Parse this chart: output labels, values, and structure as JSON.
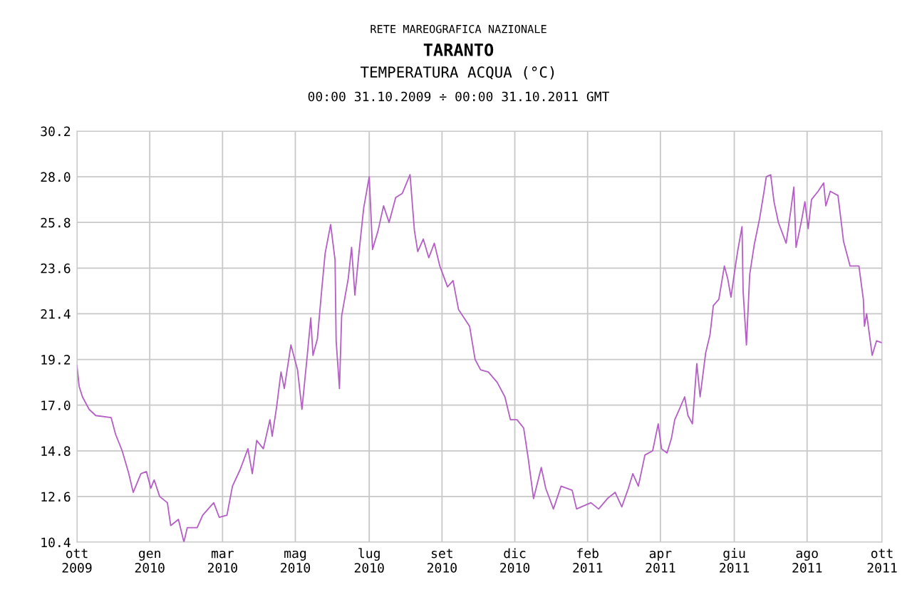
{
  "chart_data": {
    "type": "line",
    "title": "TARANTO",
    "subtitle": "TEMPERATURA ACQUA (°C)",
    "annotations": [
      "RETE MAREOGRAFICA NAZIONALE",
      "00:00 31.10.2009 ÷ 00:00 31.10.2011 GMT"
    ],
    "x": [
      "2009-10-31",
      "2009-11-02",
      "2009-11-05",
      "2009-11-11",
      "2009-11-17",
      "2009-12-01",
      "2009-12-05",
      "2009-12-11",
      "2009-12-17",
      "2009-12-21",
      "2009-12-28",
      "2010-01-02",
      "2010-01-06",
      "2010-01-09",
      "2010-01-14",
      "2010-01-21",
      "2010-01-24",
      "2010-01-31",
      "2010-02-05",
      "2010-02-08",
      "2010-02-17",
      "2010-02-22",
      "2010-03-04",
      "2010-03-09",
      "2010-03-16",
      "2010-03-21",
      "2010-03-28",
      "2010-04-04",
      "2010-04-08",
      "2010-04-12",
      "2010-04-18",
      "2010-04-24",
      "2010-04-26",
      "2010-04-30",
      "2010-05-04",
      "2010-05-07",
      "2010-05-13",
      "2010-05-19",
      "2010-05-23",
      "2010-05-28",
      "2010-05-31",
      "2010-06-02",
      "2010-06-06",
      "2010-06-10",
      "2010-06-13",
      "2010-06-18",
      "2010-06-22",
      "2010-06-23",
      "2010-06-26",
      "2010-06-28",
      "2010-07-04",
      "2010-07-07",
      "2010-07-10",
      "2010-07-14",
      "2010-07-18",
      "2010-07-23",
      "2010-07-26",
      "2010-07-31",
      "2010-08-05",
      "2010-08-10",
      "2010-08-16",
      "2010-08-22",
      "2010-08-29",
      "2010-09-02",
      "2010-09-05",
      "2010-09-10",
      "2010-09-15",
      "2010-09-20",
      "2010-09-25",
      "2010-10-02",
      "2010-10-07",
      "2010-10-12",
      "2010-10-22",
      "2010-10-27",
      "2010-11-01",
      "2010-11-08",
      "2010-11-16",
      "2010-11-23",
      "2010-11-28",
      "2010-12-04",
      "2010-12-10",
      "2010-12-14",
      "2010-12-19",
      "2010-12-26",
      "2010-12-30",
      "2011-01-06",
      "2011-01-13",
      "2011-01-23",
      "2011-01-27",
      "2011-02-09",
      "2011-02-16",
      "2011-02-24",
      "2011-03-03",
      "2011-03-09",
      "2011-03-15",
      "2011-03-19",
      "2011-03-24",
      "2011-03-30",
      "2011-04-06",
      "2011-04-11",
      "2011-04-14",
      "2011-04-19",
      "2011-04-23",
      "2011-04-26",
      "2011-05-01",
      "2011-05-05",
      "2011-05-08",
      "2011-05-12",
      "2011-05-16",
      "2011-05-19",
      "2011-05-24",
      "2011-05-28",
      "2011-05-31",
      "2011-06-05",
      "2011-06-10",
      "2011-06-13",
      "2011-06-16",
      "2011-06-20",
      "2011-06-22",
      "2011-06-26",
      "2011-06-27",
      "2011-06-30",
      "2011-07-03",
      "2011-07-07",
      "2011-07-12",
      "2011-07-16",
      "2011-07-18",
      "2011-07-22",
      "2011-07-25",
      "2011-07-29",
      "2011-08-05",
      "2011-08-09",
      "2011-08-12",
      "2011-08-14",
      "2011-08-19",
      "2011-08-22",
      "2011-08-25",
      "2011-08-28",
      "2011-09-03",
      "2011-09-08",
      "2011-09-10",
      "2011-09-14",
      "2011-09-21",
      "2011-09-24",
      "2011-09-26",
      "2011-10-02",
      "2011-10-10",
      "2011-10-14",
      "2011-10-15",
      "2011-10-17",
      "2011-10-22",
      "2011-10-26",
      "2011-10-31"
    ],
    "series": [
      {
        "color": "#b45ec6",
        "values": [
          18.9,
          17.9,
          17.4,
          16.8,
          16.5,
          16.4,
          15.6,
          14.8,
          13.7,
          12.8,
          13.7,
          13.8,
          13.0,
          13.4,
          12.6,
          12.3,
          11.2,
          11.5,
          10.4,
          11.1,
          11.1,
          11.7,
          12.3,
          11.6,
          11.7,
          13.1,
          13.9,
          14.9,
          13.7,
          15.3,
          14.9,
          16.3,
          15.5,
          16.9,
          18.6,
          17.8,
          19.9,
          18.7,
          16.8,
          19.5,
          21.2,
          19.4,
          20.2,
          22.6,
          24.3,
          25.7,
          24.0,
          20.1,
          17.8,
          21.3,
          23.1,
          24.6,
          22.3,
          24.5,
          26.5,
          28.0,
          24.5,
          25.4,
          26.6,
          25.8,
          27.0,
          27.2,
          28.1,
          25.4,
          24.4,
          25.0,
          24.1,
          24.8,
          23.7,
          22.7,
          23.0,
          21.6,
          20.8,
          19.2,
          18.7,
          18.6,
          18.1,
          17.4,
          16.3,
          16.3,
          15.9,
          14.5,
          12.5,
          14.0,
          13.0,
          12.0,
          13.1,
          12.9,
          12.0,
          12.3,
          12.0,
          12.5,
          12.8,
          12.1,
          13.0,
          13.7,
          13.1,
          14.6,
          14.8,
          16.1,
          14.9,
          14.7,
          15.4,
          16.3,
          16.9,
          17.4,
          16.5,
          16.1,
          19.0,
          17.4,
          19.5,
          20.4,
          21.8,
          22.1,
          23.7,
          23.1,
          22.2,
          23.7,
          24.4,
          25.6,
          22.5,
          19.9,
          23.3,
          24.7,
          26.0,
          27.3,
          28.0,
          28.1,
          26.8,
          25.8,
          24.8,
          26.3,
          27.5,
          24.6,
          25.9,
          26.8,
          25.5,
          26.9,
          27.3,
          27.7,
          26.6,
          27.3,
          27.1,
          25.8,
          24.9,
          23.7,
          23.7,
          22.1,
          20.8,
          21.4,
          19.4,
          20.1,
          20.0
        ]
      }
    ],
    "xlim": [
      "2009-10-31",
      "2011-10-31"
    ],
    "xticks": [
      {
        "value": "2009-10-31",
        "label": "ott\n2009"
      },
      {
        "value": "2010-01-05",
        "label": "gen\n2010"
      },
      {
        "value": "2010-03-12",
        "label": "mar\n2010"
      },
      {
        "value": "2010-05-17",
        "label": "mag\n2010"
      },
      {
        "value": "2010-07-23",
        "label": "lug\n2010"
      },
      {
        "value": "2010-09-27",
        "label": "set\n2010"
      },
      {
        "value": "2010-12-02",
        "label": "dic\n2010"
      },
      {
        "value": "2011-02-06",
        "label": "feb\n2011"
      },
      {
        "value": "2011-04-13",
        "label": "apr\n2011"
      },
      {
        "value": "2011-06-19",
        "label": "giu\n2011"
      },
      {
        "value": "2011-08-24",
        "label": "ago\n2011"
      },
      {
        "value": "2011-10-31",
        "label": "ott\n2011"
      }
    ],
    "ylim": [
      10.4,
      30.2
    ],
    "yticks": [
      {
        "value": 10.4,
        "label": "10.4"
      },
      {
        "value": 12.6,
        "label": "12.6"
      },
      {
        "value": 14.8,
        "label": "14.8"
      },
      {
        "value": 17.0,
        "label": "17.0"
      },
      {
        "value": 19.2,
        "label": "19.2"
      },
      {
        "value": 21.4,
        "label": "21.4"
      },
      {
        "value": 23.6,
        "label": "23.6"
      },
      {
        "value": 25.8,
        "label": "25.8"
      },
      {
        "value": 28.0,
        "label": "28.0"
      },
      {
        "value": 30.2,
        "label": "30.2"
      }
    ],
    "grid": true
  }
}
